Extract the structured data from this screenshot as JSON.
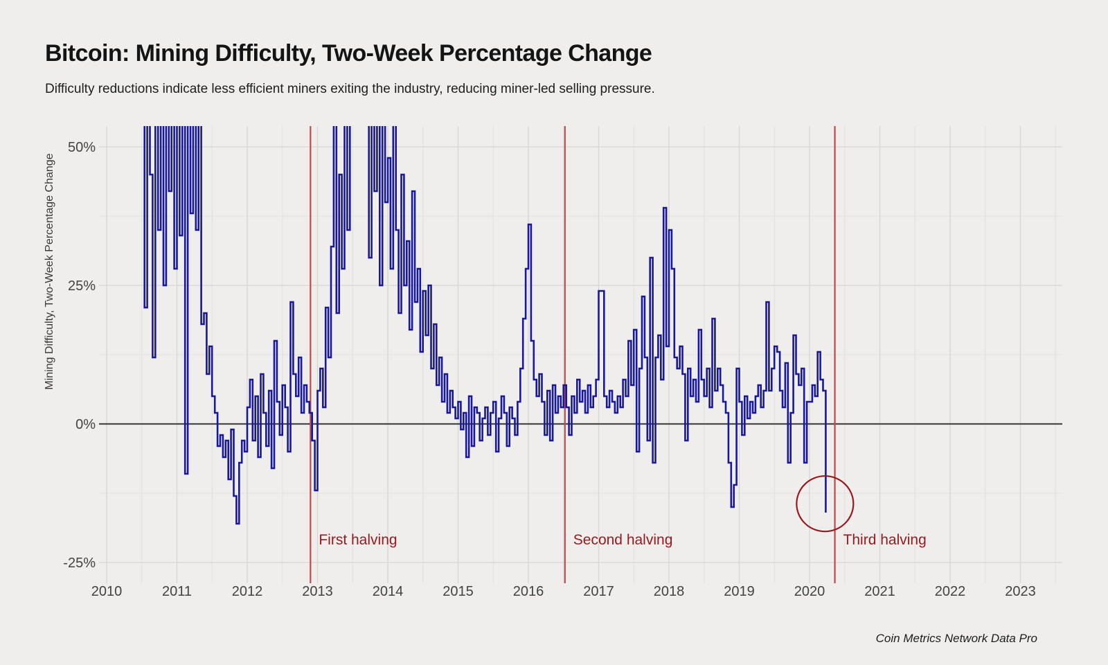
{
  "header": {
    "title": "Bitcoin: Mining Difficulty, Two-Week Percentage Change",
    "subtitle": "Difficulty reductions indicate less efficient miners exiting the industry, reducing miner-led selling pressure."
  },
  "footer": {
    "attribution": "Coin Metrics Network Data Pro"
  },
  "chart_data": {
    "type": "line",
    "line_style": "step",
    "title": "Bitcoin: Mining Difficulty, Two-Week Percentage Change",
    "xlabel": "",
    "ylabel": "Mining Difficulty, Two-Week Percentage Change",
    "grid": true,
    "legend": "none",
    "xlim": [
      2009.87,
      2023.6
    ],
    "ylim": [
      -28.75,
      53.75
    ],
    "x_ticks": [
      "2010",
      "2011",
      "2012",
      "2013",
      "2014",
      "2015",
      "2016",
      "2017",
      "2018",
      "2019",
      "2020",
      "2021",
      "2022",
      "2023"
    ],
    "x_tick_years": [
      2010,
      2011,
      2012,
      2013,
      2014,
      2015,
      2016,
      2017,
      2018,
      2019,
      2020,
      2021,
      2022,
      2023
    ],
    "y_ticks": [
      {
        "value": 50,
        "label": "50%"
      },
      {
        "value": 25,
        "label": "25%"
      },
      {
        "value": 0,
        "label": "0%"
      },
      {
        "value": -25,
        "label": "-25%"
      }
    ],
    "y_minor_gridlines": [
      37.5,
      12.5,
      -12.5
    ],
    "series": [
      {
        "name": "Mining difficulty two-week percentage change",
        "color": "#18189b",
        "x_start": 2010.5,
        "x_step_years": 0.0384615,
        "values": [
          54,
          21,
          62,
          45,
          12,
          62,
          35,
          62,
          25,
          55,
          42,
          62,
          28,
          62,
          34,
          62,
          -9,
          62,
          38,
          55,
          35,
          62,
          18,
          20,
          9,
          14,
          5,
          2,
          -4,
          -2,
          -6,
          -3,
          -10,
          -1,
          -13,
          -18,
          -7,
          -3,
          -5,
          3,
          8,
          -3,
          5,
          -6,
          9,
          2,
          -4,
          6,
          -8,
          15,
          4,
          -2,
          7,
          3,
          -5,
          22,
          9,
          5,
          12,
          2,
          7,
          4,
          2,
          -3,
          -12,
          6,
          10,
          3,
          21,
          12,
          32,
          62,
          20,
          45,
          28,
          62,
          35,
          55,
          62,
          62,
          62,
          62,
          58,
          62,
          30,
          62,
          42,
          62,
          25,
          55,
          40,
          48,
          28,
          55,
          35,
          20,
          45,
          25,
          33,
          17,
          42,
          22,
          28,
          13,
          24,
          16,
          25,
          10,
          18,
          7,
          12,
          4,
          9,
          2,
          6,
          3,
          1,
          4,
          -1,
          2,
          -6,
          5,
          -4,
          3,
          2,
          -3,
          1,
          3,
          -2,
          2,
          4,
          -5,
          1,
          5,
          2,
          -4,
          3,
          1,
          -2,
          4,
          10,
          19,
          28,
          36,
          15,
          8,
          5,
          9,
          4,
          -2,
          6,
          -3,
          7,
          2,
          5,
          3,
          7,
          3,
          -2,
          5,
          2,
          8,
          4,
          6,
          2,
          7,
          3,
          5,
          8,
          24,
          24,
          5,
          3,
          6,
          4,
          2,
          5,
          3,
          8,
          5,
          15,
          7,
          17,
          -5,
          10,
          23,
          12,
          -3,
          30,
          -7,
          12,
          16,
          8,
          39,
          14,
          35,
          28,
          12,
          10,
          14,
          9,
          -3,
          10,
          5,
          8,
          4,
          17,
          8,
          5,
          10,
          3,
          19,
          6,
          10,
          7,
          4,
          2,
          -7,
          -15,
          -11,
          10,
          4,
          -2,
          5,
          1,
          4,
          2,
          5,
          7,
          3,
          6,
          22,
          6,
          10,
          14,
          13,
          6,
          3,
          11,
          -7,
          2,
          16,
          9,
          7,
          10,
          -7,
          4,
          4,
          7,
          5,
          13,
          8,
          6,
          -16
        ]
      }
    ],
    "events": [
      {
        "label": "First halving",
        "x_year": 2012.9
      },
      {
        "label": "Second halving",
        "x_year": 2016.52
      },
      {
        "label": "Third halving",
        "x_year": 2020.36
      }
    ],
    "highlight_circle": {
      "x_year": 2020.22,
      "y_pct": -14.4
    },
    "colors": {
      "line": "#18189b",
      "event_line": "#bd4b48",
      "annotation": "#97191c",
      "zero_line": "#4a4a4a",
      "grid_major": "#d6d6d4",
      "grid_minor": "#e2e2df",
      "axis_text": "#424242"
    }
  }
}
